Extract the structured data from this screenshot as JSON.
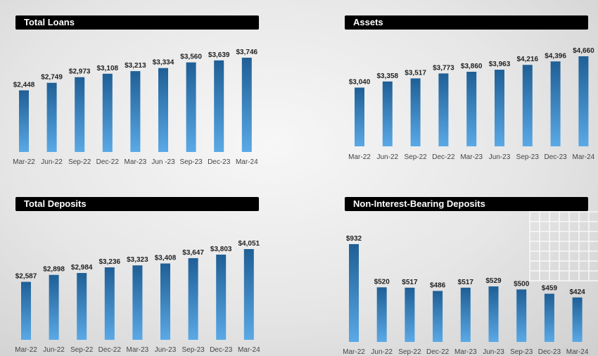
{
  "colors": {
    "bar_top": "#1f5f96",
    "bar_bottom": "#5aa9e6",
    "title_bg": "#000000",
    "title_text": "#ffffff",
    "label_text": "#222222",
    "tick_text": "#444444"
  },
  "chart_data": [
    {
      "type": "bar",
      "title": "Total Loans",
      "categories": [
        "Mar-22",
        "Jun-22",
        "Sep-22",
        "Dec-22",
        "Mar-23",
        "Jun -23",
        "Sep-23",
        "Dec-23",
        "Mar-24"
      ],
      "values": [
        2448,
        2749,
        2973,
        3108,
        3213,
        3334,
        3560,
        3639,
        3746
      ],
      "data_labels": [
        "$2,448",
        "$2,749",
        "$2,973",
        "$3,108",
        "$3,213",
        "$3,334",
        "$3,560",
        "$3,639",
        "$3,746"
      ],
      "grid": false,
      "legend": "none"
    },
    {
      "type": "bar",
      "title": "Assets",
      "categories": [
        "Mar-22",
        "Jun-22",
        "Sep-22",
        "Dec-22",
        "Mar-23",
        "Jun-23",
        "Sep-23",
        "Dec-23",
        "Mar-24"
      ],
      "values": [
        3040,
        3358,
        3517,
        3773,
        3860,
        3963,
        4216,
        4396,
        4660
      ],
      "data_labels": [
        "$3,040",
        "$3,358",
        "$3,517",
        "$3,773",
        "$3,860",
        "$3,963",
        "$4,216",
        "$4,396",
        "$4,660"
      ],
      "grid": false,
      "legend": "none"
    },
    {
      "type": "bar",
      "title": "Total Deposits",
      "categories": [
        "Mar-22",
        "Jun-22",
        "Sep-22",
        "Dec-22",
        "Mar-23",
        "Jun-23",
        "Sep-23",
        "Dec-23",
        "Mar-24"
      ],
      "values": [
        2587,
        2898,
        2984,
        3236,
        3323,
        3408,
        3647,
        3803,
        4051
      ],
      "data_labels": [
        "$2,587",
        "$2,898",
        "$2,984",
        "$3,236",
        "$3,323",
        "$3,408",
        "$3,647",
        "$3,803",
        "$4,051"
      ],
      "grid": false,
      "legend": "none"
    },
    {
      "type": "bar",
      "title": "Non-Interest-Bearing Deposits",
      "categories": [
        "Mar-22",
        "Jun-22",
        "Sep-22",
        "Dec-22",
        "Mar-23",
        "Jun-23",
        "Sep-23",
        "Dec-23",
        "Mar-24"
      ],
      "values": [
        932,
        520,
        517,
        486,
        517,
        529,
        500,
        459,
        424
      ],
      "data_labels": [
        "$932",
        "$520",
        "$517",
        "$486",
        "$517",
        "$529",
        "$500",
        "$459",
        "$424"
      ],
      "grid": false,
      "legend": "none"
    }
  ]
}
